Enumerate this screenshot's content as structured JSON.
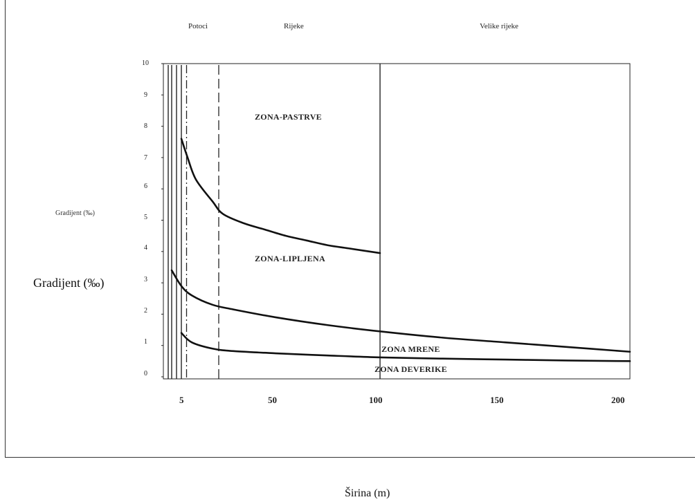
{
  "chart_data": {
    "type": "line",
    "ylabel_small": "Gradijent (‰)",
    "ylabel": "Gradijent (‰)",
    "xlabel": "Širina (m)",
    "x_tick_labels": [
      "5",
      "50",
      "100",
      "150",
      "200"
    ],
    "x_ticks": [
      5,
      50,
      100,
      150,
      200
    ],
    "y_tick_labels": [
      "0",
      "1",
      "2",
      "3",
      "4",
      "5",
      "6",
      "7",
      "8",
      "9",
      "10"
    ],
    "ylim": [
      0,
      10
    ],
    "grid": false,
    "width_classes": [
      "Potoci",
      "Rijeke",
      "Velike rijeke"
    ],
    "zones": {
      "pastrve": "ZONA-PASTRVE",
      "lipljena": "ZONA-LIPLJENA",
      "mrene": "ZONA MRENE",
      "deverike": "ZONA DEVERIKE"
    },
    "series": [
      {
        "x": [
          5,
          8,
          12,
          20,
          25,
          35,
          45,
          55,
          65,
          75,
          85,
          100
        ],
        "values": [
          7.6,
          7.0,
          6.3,
          5.6,
          5.2,
          4.9,
          4.7,
          4.5,
          4.35,
          4.2,
          4.1,
          3.95
        ]
      },
      {
        "x": [
          0,
          5,
          10,
          20,
          30,
          50,
          75,
          100,
          125,
          150,
          175,
          200
        ],
        "values": [
          3.4,
          2.9,
          2.6,
          2.3,
          2.15,
          1.9,
          1.65,
          1.45,
          1.25,
          1.1,
          0.95,
          0.8
        ]
      },
      {
        "x": [
          5,
          10,
          20,
          30,
          50,
          75,
          100,
          125,
          150,
          175,
          200
        ],
        "values": [
          1.4,
          1.1,
          0.9,
          0.82,
          0.75,
          0.68,
          0.62,
          0.58,
          0.55,
          0.52,
          0.5
        ]
      }
    ],
    "vertical_lines": [
      {
        "x": -2,
        "style": "solid"
      },
      {
        "x": 0,
        "style": "solid"
      },
      {
        "x": 2.5,
        "style": "solid"
      },
      {
        "x": 5,
        "style": "solid"
      },
      {
        "x": 7.5,
        "style": "dashdot"
      },
      {
        "x": 23,
        "style": "dashed"
      },
      {
        "x": 100,
        "style": "solid"
      }
    ]
  }
}
